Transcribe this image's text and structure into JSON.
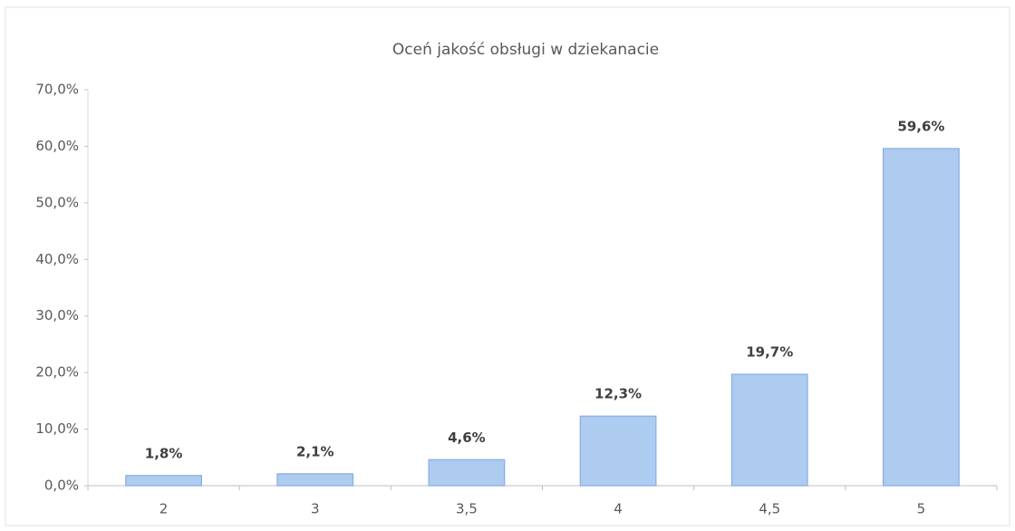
{
  "chart_data": {
    "type": "bar",
    "title": "Oceń jakość obsługi w dziekanacie",
    "categories": [
      "2",
      "3",
      "3,5",
      "4",
      "4,5",
      "5"
    ],
    "values": [
      1.8,
      2.1,
      4.6,
      12.3,
      19.7,
      59.6
    ],
    "value_labels": [
      "1,8%",
      "2,1%",
      "4,6%",
      "12,3%",
      "19,7%",
      "59,6%"
    ],
    "color": "#aecbf0",
    "ylim": [
      0,
      70
    ],
    "yticks": [
      {
        "value": 0,
        "label": "0,0%"
      },
      {
        "value": 10,
        "label": "10,0%"
      },
      {
        "value": 20,
        "label": "20,0%"
      },
      {
        "value": 30,
        "label": "30,0%"
      },
      {
        "value": 40,
        "label": "40,0%"
      },
      {
        "value": 50,
        "label": "50,0%"
      },
      {
        "value": 60,
        "label": "60,0%"
      },
      {
        "value": 70,
        "label": "70,0%"
      }
    ],
    "grid": false
  }
}
